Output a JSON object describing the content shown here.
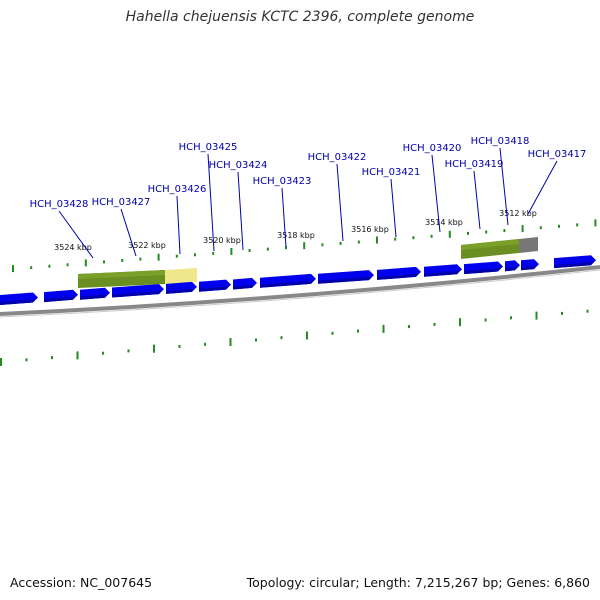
{
  "title": "Hahella chejuensis KCTC 2396, complete genome",
  "footer": {
    "accession": "Accession: NC_007645",
    "summary": "Topology: circular; Length: 7,215,267 bp; Genes: 6,860"
  },
  "colors": {
    "gene": "#0000ee",
    "backbone": "#888888",
    "tick": "#228b22",
    "label": "#0000aa",
    "feature_green": "#6b8e23",
    "feature_yellow": "#f0e68c",
    "feature_gray": "#777777"
  },
  "scale_labels": [
    "3524 kbp",
    "3522 kbp",
    "3520 kbp",
    "3518 kbp",
    "3516 kbp",
    "3514 kbp",
    "3512 kbp"
  ],
  "gene_labels": [
    "HCH_03428",
    "HCH_03427",
    "HCH_03426",
    "HCH_03425",
    "HCH_03424",
    "HCH_03423",
    "HCH_03422",
    "HCH_03421",
    "HCH_03420",
    "HCH_03419",
    "HCH_03418",
    "HCH_03417"
  ]
}
